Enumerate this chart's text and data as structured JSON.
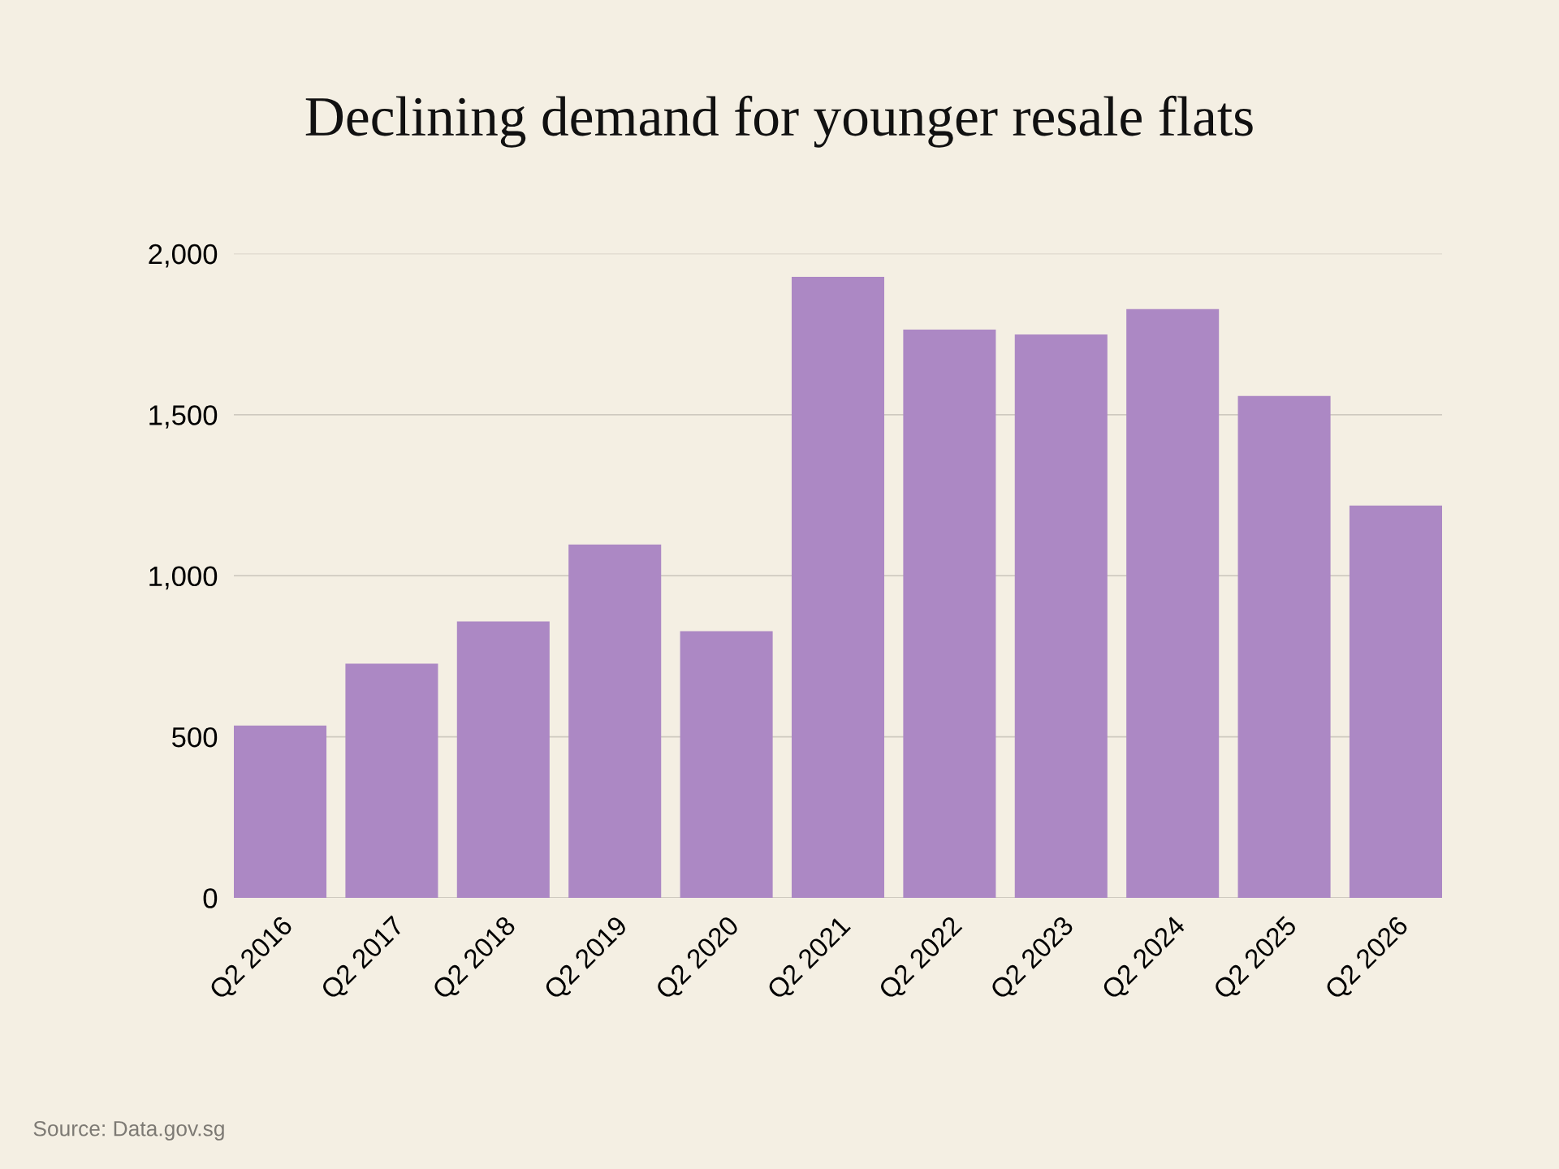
{
  "chart_data": {
    "type": "bar",
    "title": "Declining demand for younger resale flats",
    "categories": [
      "Q2 2016",
      "Q2 2017",
      "Q2 2018",
      "Q2 2019",
      "Q2 2020",
      "Q2 2021",
      "Q2 2022",
      "Q2 2023",
      "Q2 2024",
      "Q2 2025",
      "Q2 2026"
    ],
    "values": [
      535,
      727,
      858,
      1097,
      828,
      1928,
      1764,
      1749,
      1828,
      1558,
      1218
    ],
    "color": "#ac88c4",
    "ylim": [
      0,
      2000
    ],
    "yticks": [
      0,
      500,
      {
        "value": 1000,
        "label": "1,000"
      },
      {
        "value": 1500,
        "label": "1,500"
      },
      {
        "value": 2000,
        "label": "2,000"
      }
    ],
    "grid": "y",
    "annotations": [
      "Source: Data.gov.sg"
    ]
  }
}
